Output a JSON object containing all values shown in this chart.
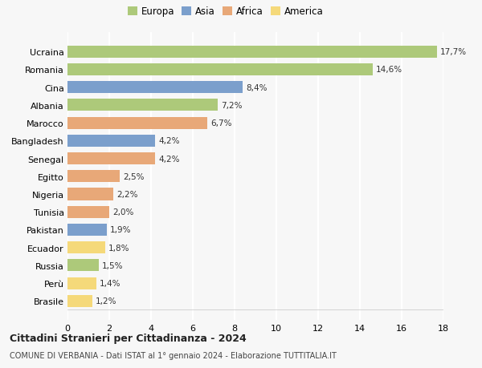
{
  "categories": [
    "Brasile",
    "Perù",
    "Russia",
    "Ecuador",
    "Pakistan",
    "Tunisia",
    "Nigeria",
    "Egitto",
    "Senegal",
    "Bangladesh",
    "Marocco",
    "Albania",
    "Cina",
    "Romania",
    "Ucraina"
  ],
  "values": [
    1.2,
    1.4,
    1.5,
    1.8,
    1.9,
    2.0,
    2.2,
    2.5,
    4.2,
    4.2,
    6.7,
    7.2,
    8.4,
    14.6,
    17.7
  ],
  "labels": [
    "1,2%",
    "1,4%",
    "1,5%",
    "1,8%",
    "1,9%",
    "2,0%",
    "2,2%",
    "2,5%",
    "4,2%",
    "4,2%",
    "6,7%",
    "7,2%",
    "8,4%",
    "14,6%",
    "17,7%"
  ],
  "colors": [
    "#f5d97a",
    "#f5d97a",
    "#adc97a",
    "#f5d97a",
    "#7b9fcc",
    "#e8a878",
    "#e8a878",
    "#e8a878",
    "#e8a878",
    "#7b9fcc",
    "#e8a878",
    "#adc97a",
    "#7b9fcc",
    "#adc97a",
    "#adc97a"
  ],
  "legend_labels": [
    "Europa",
    "Asia",
    "Africa",
    "America"
  ],
  "legend_colors": [
    "#adc97a",
    "#7b9fcc",
    "#e8a878",
    "#f5d97a"
  ],
  "title": "Cittadini Stranieri per Cittadinanza - 2024",
  "subtitle": "COMUNE DI VERBANIA - Dati ISTAT al 1° gennaio 2024 - Elaborazione TUTTITALIA.IT",
  "xlim": [
    0,
    18
  ],
  "xticks": [
    0,
    2,
    4,
    6,
    8,
    10,
    12,
    14,
    16,
    18
  ],
  "background_color": "#f7f7f7",
  "grid_color": "#ffffff"
}
